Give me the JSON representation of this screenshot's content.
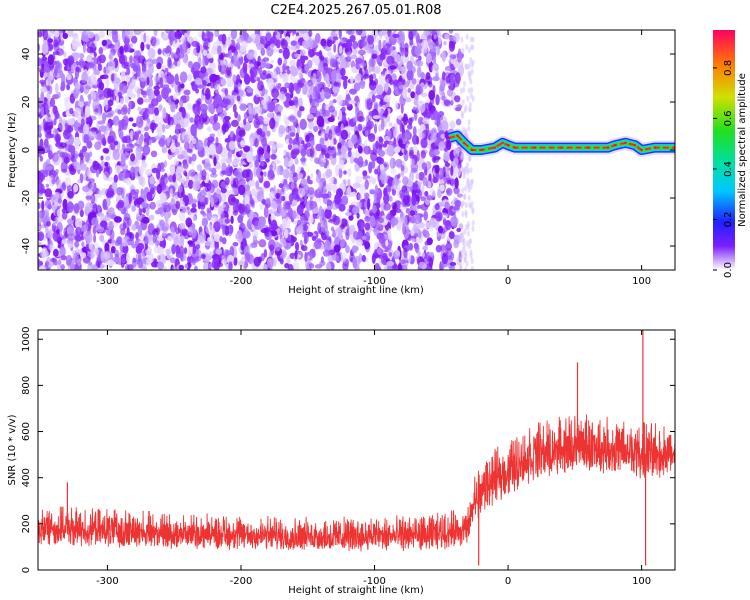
{
  "title": "C2E4.2025.267.05.01.R08",
  "chart_data": [
    {
      "type": "heatmap",
      "name": "spectrogram",
      "xlabel": "Height of straight line (km)",
      "ylabel": "Frequency (Hz)",
      "xlim": [
        -352,
        125
      ],
      "ylim": [
        -50,
        50
      ],
      "xticks": [
        -300,
        -200,
        -100,
        0,
        100
      ],
      "yticks": [
        -40,
        -20,
        0,
        20,
        40
      ],
      "colorbar": {
        "label": "Normalized spectral amplitude",
        "range": [
          0.0,
          0.95
        ],
        "ticks": [
          0.0,
          0.2,
          0.4,
          0.6,
          0.8
        ]
      },
      "noise_region_x": [
        -352,
        -35
      ],
      "signal_track": [
        {
          "x": -44,
          "f": 5
        },
        {
          "x": -38,
          "f": 6
        },
        {
          "x": -33,
          "f": 3
        },
        {
          "x": -27,
          "f": 0
        },
        {
          "x": -20,
          "f": 0
        },
        {
          "x": -10,
          "f": 1
        },
        {
          "x": -4,
          "f": 3
        },
        {
          "x": 0,
          "f": 2
        },
        {
          "x": 5,
          "f": 1
        },
        {
          "x": 20,
          "f": 1
        },
        {
          "x": 40,
          "f": 1
        },
        {
          "x": 60,
          "f": 1
        },
        {
          "x": 75,
          "f": 1
        },
        {
          "x": 80,
          "f": 2
        },
        {
          "x": 88,
          "f": 3
        },
        {
          "x": 95,
          "f": 2
        },
        {
          "x": 100,
          "f": 0
        },
        {
          "x": 110,
          "f": 1
        },
        {
          "x": 125,
          "f": 1
        }
      ]
    },
    {
      "type": "line",
      "name": "snr",
      "xlabel": "Height of straight line (km)",
      "ylabel": "SNR (10 * v/v)",
      "xlim": [
        -352,
        125
      ],
      "ylim": [
        0,
        1040
      ],
      "xticks": [
        -300,
        -200,
        -100,
        0,
        100
      ],
      "yticks": [
        0,
        200,
        400,
        600,
        800,
        1000
      ],
      "color": "#ee3333",
      "trend": [
        {
          "x": -352,
          "lo": 60,
          "hi": 280
        },
        {
          "x": -250,
          "lo": 50,
          "hi": 250
        },
        {
          "x": -150,
          "lo": 40,
          "hi": 230
        },
        {
          "x": -60,
          "lo": 40,
          "hi": 240
        },
        {
          "x": -30,
          "lo": 60,
          "hi": 270
        },
        {
          "x": -25,
          "lo": 150,
          "hi": 430
        },
        {
          "x": -15,
          "lo": 200,
          "hi": 500
        },
        {
          "x": 0,
          "lo": 260,
          "hi": 570
        },
        {
          "x": 20,
          "lo": 320,
          "hi": 640
        },
        {
          "x": 50,
          "lo": 360,
          "hi": 680
        },
        {
          "x": 80,
          "lo": 350,
          "hi": 660
        },
        {
          "x": 100,
          "lo": 320,
          "hi": 640
        },
        {
          "x": 125,
          "lo": 350,
          "hi": 630
        }
      ],
      "spikes": [
        {
          "x": 52,
          "y": 900
        },
        {
          "x": 101,
          "y": 1040
        },
        {
          "x": 103,
          "y": 20
        },
        {
          "x": -22,
          "y": 20
        },
        {
          "x": -330,
          "y": 380
        }
      ]
    }
  ]
}
